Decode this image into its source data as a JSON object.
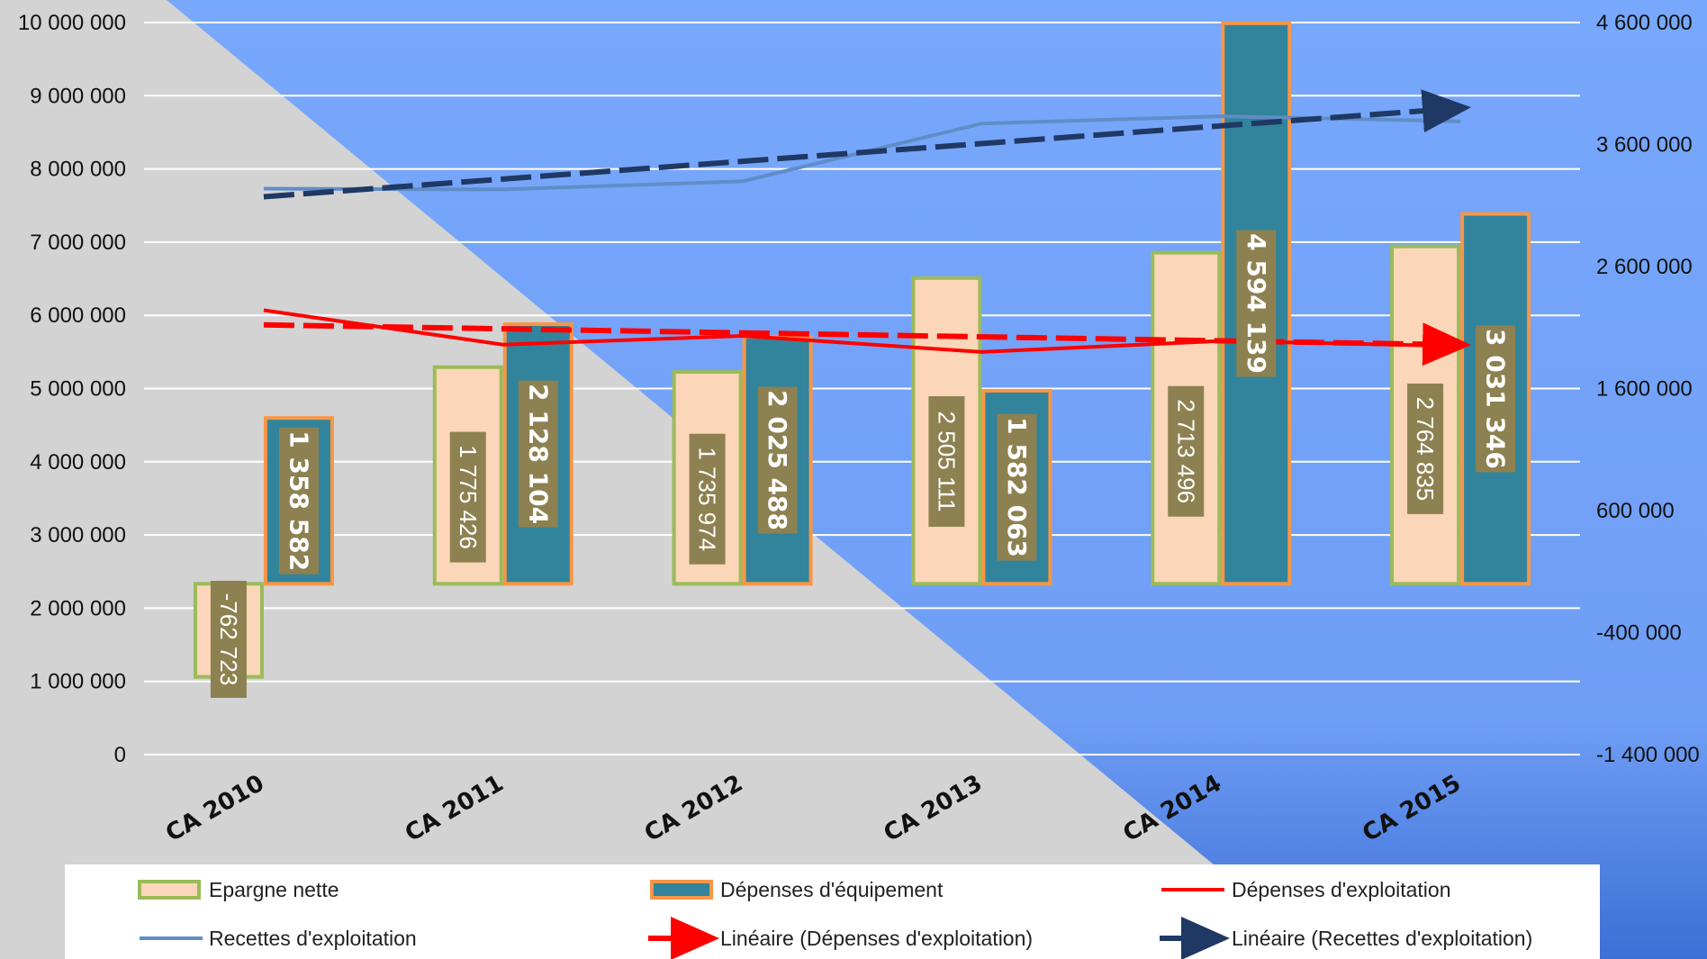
{
  "colors": {
    "bg_gray": "#d3d3d3",
    "bg_blue_light": "#7eaefc",
    "bg_blue_dark": "#3d6fd6",
    "epargne_fill": "#fbd6b8",
    "epargne_border": "#9bbb59",
    "depenses_equip_fill": "#31849b",
    "depenses_equip_border": "#f79646",
    "label_box": "#8d8151",
    "depenses_exploit_line": "#ff0000",
    "recettes_exploit_line": "#5f8dc6",
    "trend_recettes": "#1f3864",
    "trend_depenses": "#ff0000",
    "gridline": "#ffffff"
  },
  "chart_data": {
    "type": "bar",
    "categories": [
      "CA 2010",
      "CA 2011",
      "CA 2012",
      "CA 2013",
      "CA 2014",
      "CA 2015"
    ],
    "y_left_ticks": [
      "10 000 000",
      "9 000 000",
      "8 000 000",
      "7 000 000",
      "6 000 000",
      "5 000 000",
      "4 000 000",
      "3 000 000",
      "2 000 000",
      "1 000 000",
      "0"
    ],
    "y_right_ticks": [
      "4 600 000",
      "3 600 000",
      "2 600 000",
      "1 600 000",
      "600 000",
      "-400 000",
      "-1 400 000"
    ],
    "y_left_range": [
      0,
      10000000
    ],
    "y_right_range": [
      -1400000,
      4600000
    ],
    "grid": true,
    "legend_position": "bottom",
    "series": [
      {
        "name": "Epargne nette",
        "type": "bar",
        "axis": "right",
        "values": [
          -762723,
          1775426,
          1735974,
          2505111,
          2713496,
          2764835
        ],
        "labels": [
          "-762 723",
          "1 775 426",
          "1 735 974",
          "2 505 111",
          "2 713 496",
          "2 764 835"
        ]
      },
      {
        "name": "Dépenses d'équipement",
        "type": "bar",
        "axis": "right",
        "values": [
          1358582,
          2128104,
          2025488,
          1582063,
          4594139,
          3031346
        ],
        "labels": [
          "1 358 582",
          "2 128 104",
          "2 025 488",
          "1 582 063",
          "4 594 139",
          "3 031 346"
        ]
      },
      {
        "name": "Dépenses d'exploitation",
        "type": "line",
        "axis": "left",
        "values": [
          6070000,
          5600000,
          5720000,
          5500000,
          5650000,
          5580000
        ]
      },
      {
        "name": "Recettes d'exploitation",
        "type": "line",
        "axis": "left",
        "values": [
          7730000,
          7720000,
          7830000,
          8620000,
          8720000,
          8650000
        ]
      },
      {
        "name": "Linéaire (Dépenses d'exploitation)",
        "type": "trendline",
        "axis": "left",
        "values": [
          5870000,
          5820000,
          5770000,
          5720000,
          5670000,
          5600000
        ]
      },
      {
        "name": "Linéaire (Recettes d'exploitation)",
        "type": "trendline",
        "axis": "left",
        "values": [
          7620000,
          7860000,
          8100000,
          8340000,
          8580000,
          8820000
        ]
      }
    ]
  },
  "legend": {
    "epargne": "Epargne nette",
    "depenses_equip": "Dépenses d'équipement",
    "depenses_exploit": "Dépenses d'exploitation",
    "recettes_exploit": "Recettes d'exploitation",
    "lineaire_depenses": "Linéaire (Dépenses d'exploitation)",
    "lineaire_recettes": "Linéaire (Recettes d'exploitation)"
  }
}
